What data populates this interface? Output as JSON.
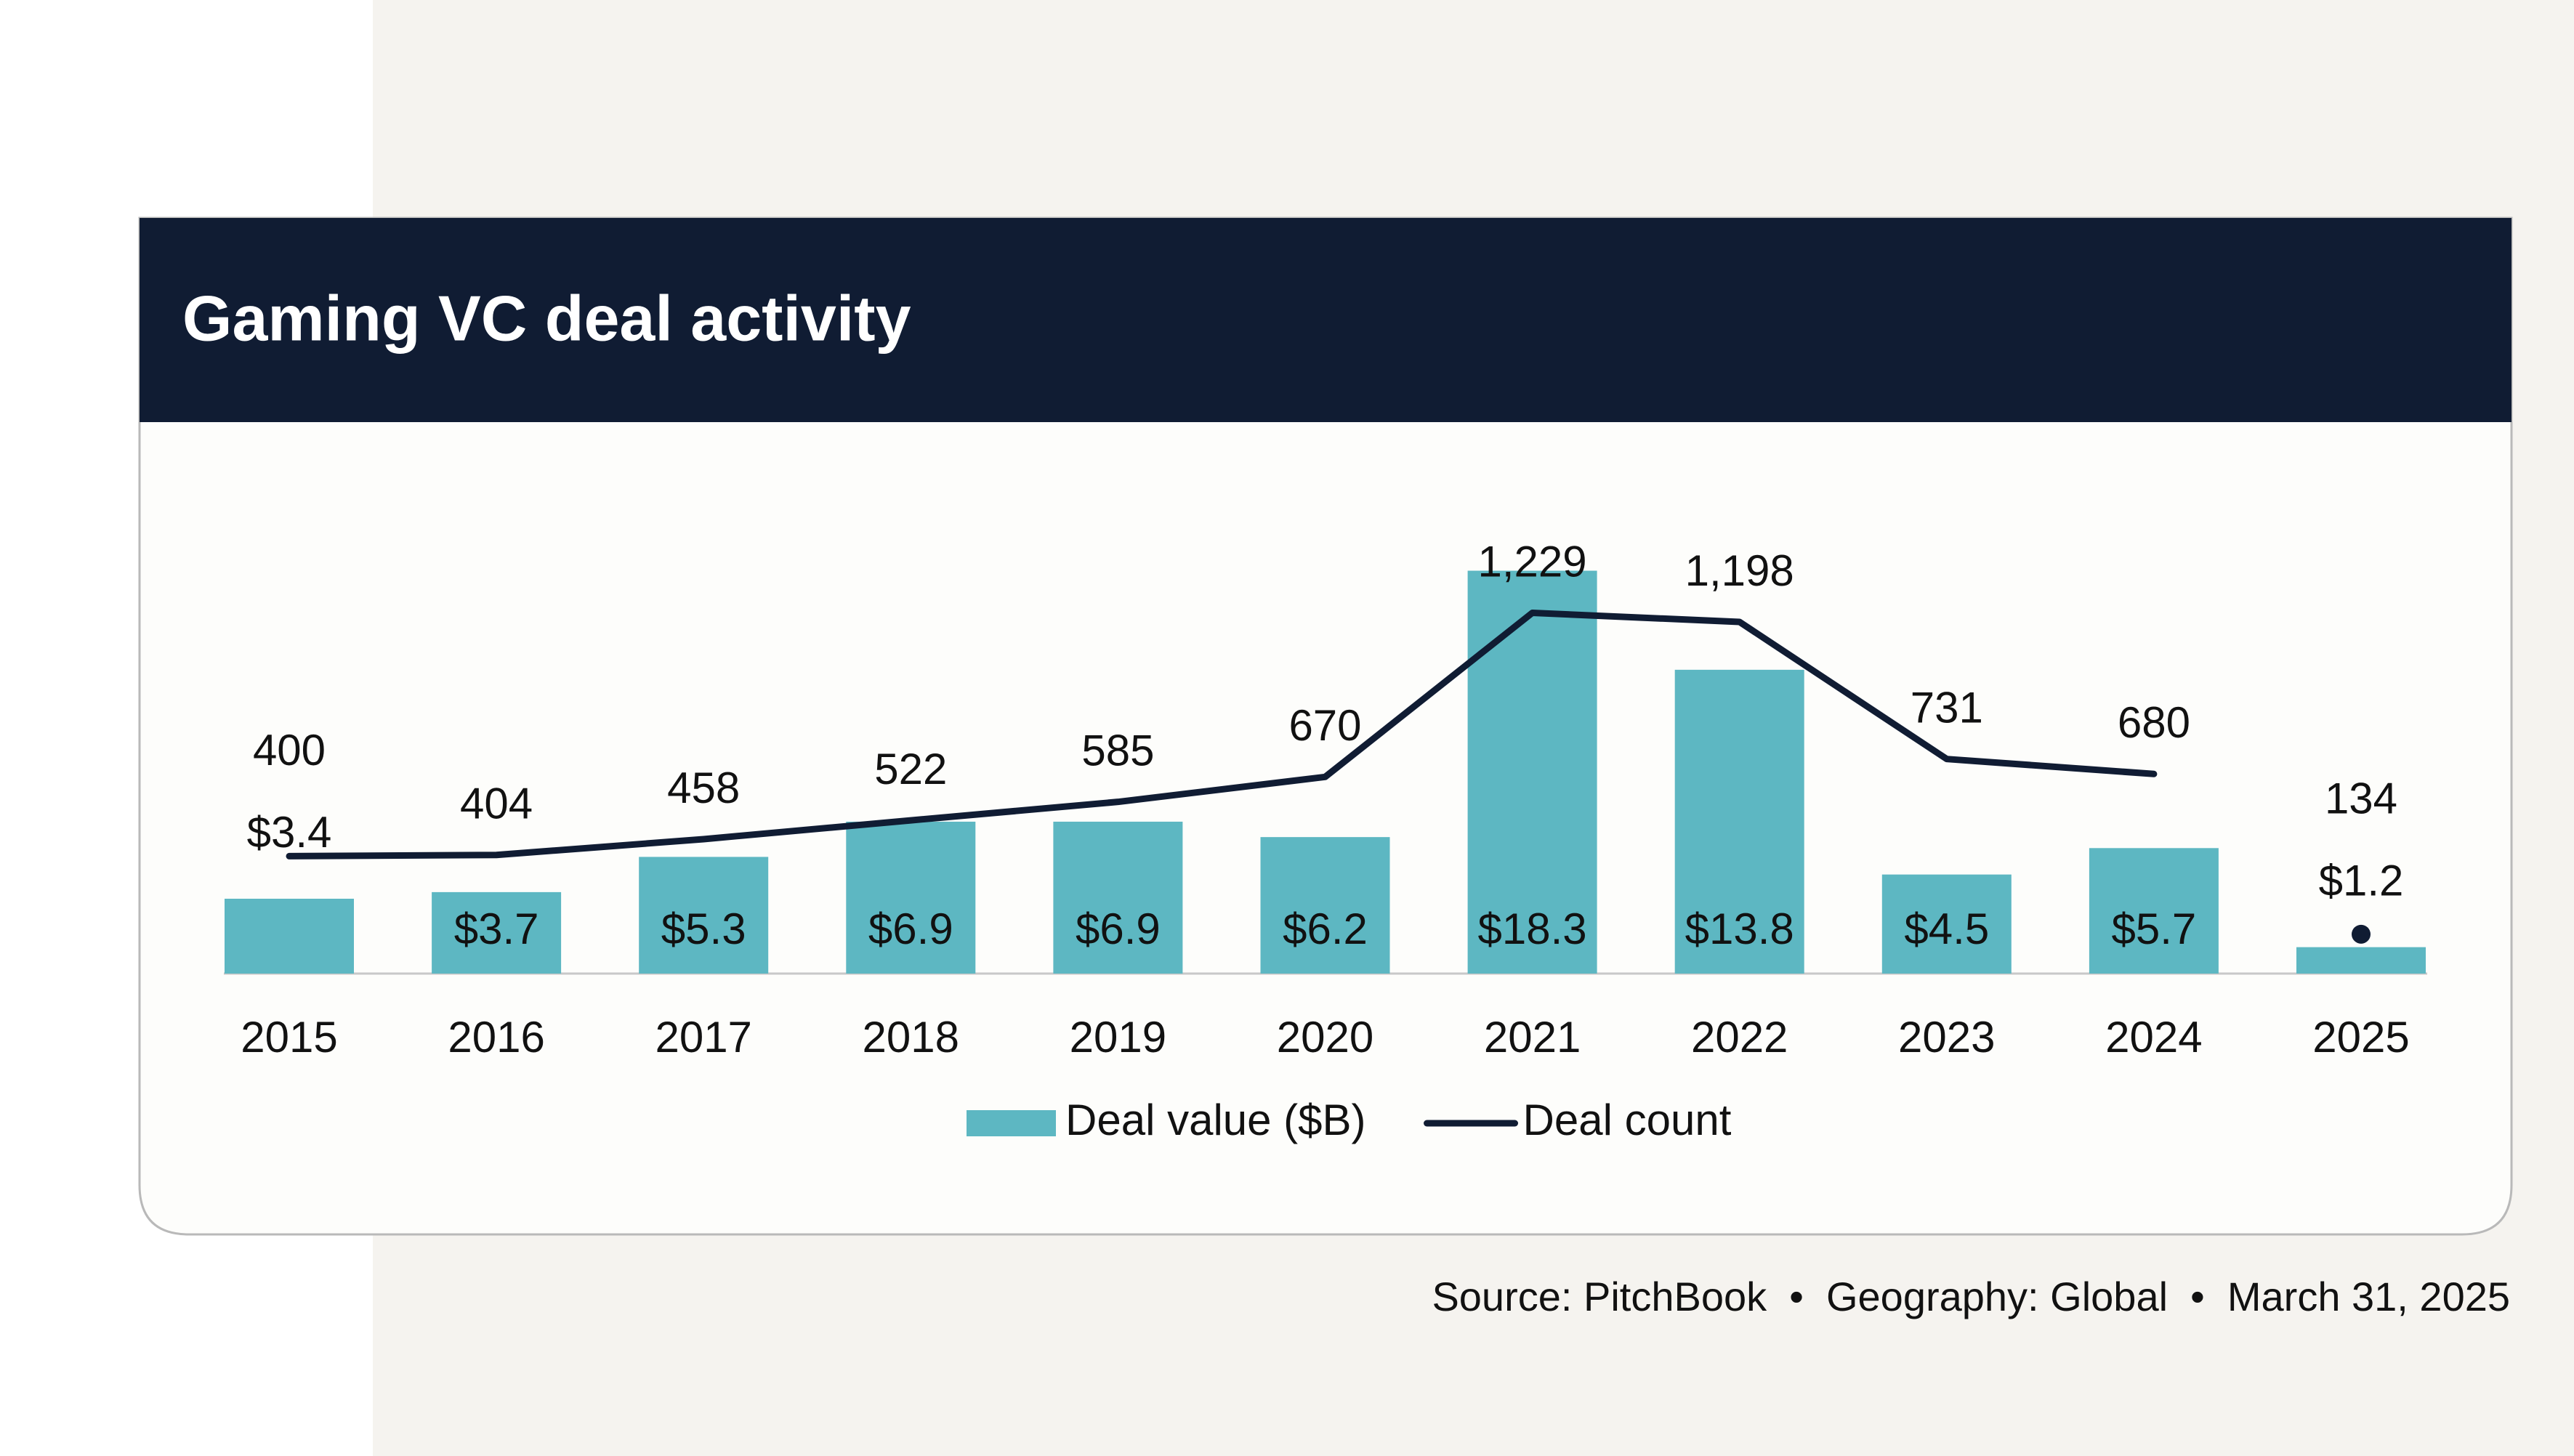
{
  "chart_data": {
    "type": "bar",
    "title": "Gaming VC deal activity",
    "categories": [
      "2015",
      "2016",
      "2017",
      "2018",
      "2019",
      "2020",
      "2021",
      "2022",
      "2023",
      "2024",
      "2025"
    ],
    "series": [
      {
        "name": "Deal value ($B)",
        "type": "bar",
        "color": "#5db7c2",
        "values": [
          3.4,
          3.7,
          5.3,
          6.9,
          6.9,
          6.2,
          18.3,
          13.8,
          4.5,
          5.7,
          1.2
        ],
        "value_labels": [
          "$3.4",
          "$3.7",
          "$5.3",
          "$6.9",
          "$6.9",
          "$6.2",
          "$18.3",
          "$13.8",
          "$4.5",
          "$5.7",
          "$1.2"
        ]
      },
      {
        "name": "Deal count",
        "type": "line",
        "axis": "y2",
        "color": "#101c33",
        "values": [
          400,
          404,
          458,
          522,
          585,
          670,
          1229,
          1198,
          731,
          680,
          134
        ],
        "value_labels": [
          "400",
          "404",
          "458",
          "522",
          "585",
          "670",
          "1,229",
          "1,198",
          "731",
          "680",
          "134"
        ]
      }
    ],
    "ylim": [
      0,
      20
    ],
    "y2lim": [
      0,
      1500
    ],
    "source": "Source: PitchBook  •  Geography: Global  •  March 31, 2025"
  }
}
